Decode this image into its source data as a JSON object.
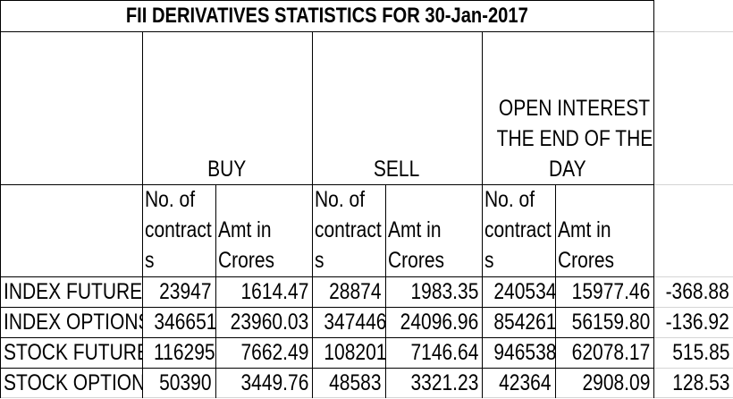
{
  "title": "FII DERIVATIVES STATISTICS FOR 30-Jan-2017",
  "group_headers": {
    "buy": "BUY",
    "sell": "SELL",
    "oi_line1": "OPEN INTEREST AT",
    "oi_line2": "THE END OF THE",
    "oi_line3": "DAY"
  },
  "sub_headers": {
    "contracts_line1": "No. of",
    "contracts_line2": "contract",
    "contracts_line3": "s",
    "amount_line1": "Amt in",
    "amount_line2": "Crores"
  },
  "rows": [
    {
      "label": "INDEX FUTURES",
      "buy_contracts": "23947",
      "buy_amount": "1614.47",
      "sell_contracts": "28874",
      "sell_amount": "1983.35",
      "oi_contracts": "240534",
      "oi_amount": "15977.46",
      "net": "-368.88"
    },
    {
      "label": "INDEX OPTIONS",
      "buy_contracts": "346651",
      "buy_amount": "23960.03",
      "sell_contracts": "347446",
      "sell_amount": "24096.96",
      "oi_contracts": "854261",
      "oi_amount": "56159.80",
      "net": "-136.92"
    },
    {
      "label": "STOCK FUTURES",
      "buy_contracts": "116295",
      "buy_amount": "7662.49",
      "sell_contracts": "108201",
      "sell_amount": "7146.64",
      "oi_contracts": "946538",
      "oi_amount": "62078.17",
      "net": "515.85"
    },
    {
      "label": "STOCK OPTIONS",
      "buy_contracts": "50390",
      "buy_amount": "3449.76",
      "sell_contracts": "48583",
      "sell_amount": "3321.23",
      "oi_contracts": "42364",
      "oi_amount": "2908.09",
      "net": "128.53"
    }
  ]
}
